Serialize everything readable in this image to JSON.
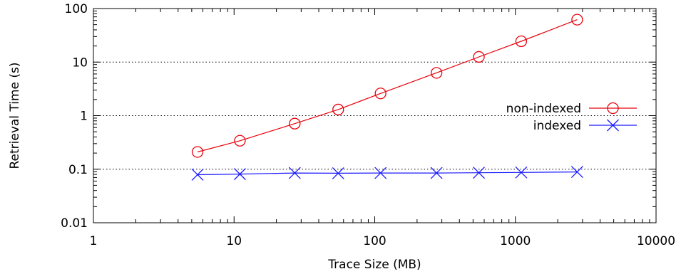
{
  "chart_data": {
    "type": "line",
    "title": "",
    "xlabel": "Trace Size (MB)",
    "ylabel": "Retrieval Time (s)",
    "x_scale": "log",
    "y_scale": "log",
    "xlim": [
      1,
      10000
    ],
    "ylim": [
      0.01,
      100
    ],
    "x_ticks": [
      "1",
      "10",
      "100",
      "1000",
      "10000"
    ],
    "y_ticks": [
      "0.01",
      "0.1",
      "1",
      "10",
      "100"
    ],
    "grid": "horizontal dotted at major y ticks",
    "legend_position": "right",
    "x": [
      5.5,
      11,
      27,
      55,
      110,
      275,
      550,
      1100,
      2750
    ],
    "series": [
      {
        "name": "non-indexed",
        "color": "#e8000b",
        "marker": "circle",
        "values": [
          0.21,
          0.34,
          0.71,
          1.3,
          2.6,
          6.3,
          12.5,
          24.5,
          62
        ]
      },
      {
        "name": "indexed",
        "color": "#1a1aff",
        "marker": "x",
        "values": [
          0.079,
          0.081,
          0.085,
          0.084,
          0.085,
          0.085,
          0.086,
          0.087,
          0.089
        ]
      }
    ]
  }
}
